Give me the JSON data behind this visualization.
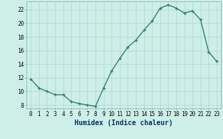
{
  "x": [
    0,
    1,
    2,
    3,
    4,
    5,
    6,
    7,
    8,
    9,
    10,
    11,
    12,
    13,
    14,
    15,
    16,
    17,
    18,
    19,
    20,
    21,
    22,
    23
  ],
  "y": [
    11.8,
    10.5,
    10.0,
    9.5,
    9.5,
    8.5,
    8.2,
    8.0,
    7.8,
    10.5,
    13.0,
    14.8,
    16.5,
    17.5,
    19.0,
    20.3,
    22.2,
    22.7,
    22.2,
    21.5,
    21.8,
    20.5,
    15.8,
    14.4
  ],
  "xlabel": "Humidex (Indice chaleur)",
  "bg_color": "#ceeee8",
  "line_color": "#2e7d6e",
  "grid_color": "#a8d8d0",
  "ylim_min": 7.5,
  "ylim_max": 23.2,
  "yticks": [
    8,
    10,
    12,
    14,
    16,
    18,
    20,
    22
  ],
  "xticks": [
    0,
    1,
    2,
    3,
    4,
    5,
    6,
    7,
    8,
    9,
    10,
    11,
    12,
    13,
    14,
    15,
    16,
    17,
    18,
    19,
    20,
    21,
    22,
    23
  ],
  "xlabel_color": "#003366",
  "tick_fontsize": 5.5,
  "xlabel_fontsize": 7.0,
  "line_width": 1.0,
  "marker_size": 3.5
}
